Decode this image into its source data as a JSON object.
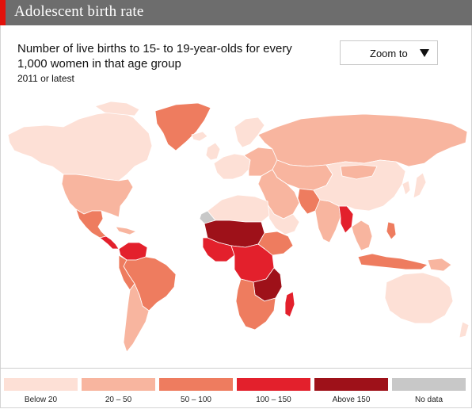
{
  "header": {
    "title": "Adolescent birth rate"
  },
  "subtitle": "Number of live births to 15- to 19-year-olds for every 1,000 women in that age group",
  "date_note": "2011 or latest",
  "zoom": {
    "label": "Zoom to",
    "icon": "triangle-down-icon"
  },
  "colors": {
    "ocean": "#ffffff",
    "border": "#ffffff",
    "band_below_20": "#fde0d6",
    "band_20_50": "#f8b59f",
    "band_50_100": "#ee7c5f",
    "band_100_150": "#e3202c",
    "band_above_150": "#9e1119",
    "no_data": "#c8c8c8"
  },
  "legend": {
    "items": [
      {
        "label": "Below 20",
        "color": "#fde0d6"
      },
      {
        "label": "20 – 50",
        "color": "#f8b59f"
      },
      {
        "label": "50 – 100",
        "color": "#ee7c5f"
      },
      {
        "label": "100 – 150",
        "color": "#e3202c"
      },
      {
        "label": "Above 150",
        "color": "#9e1119"
      },
      {
        "label": "No data",
        "color": "#c8c8c8"
      }
    ]
  }
}
